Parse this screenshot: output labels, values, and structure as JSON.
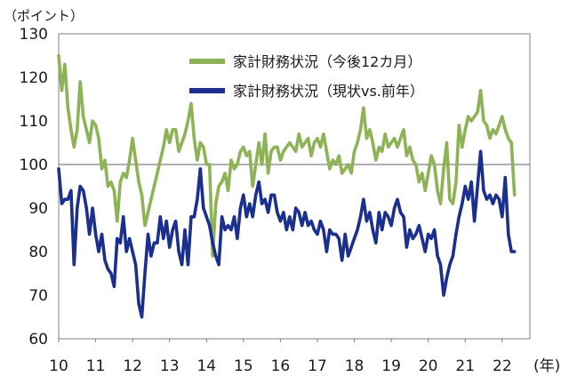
{
  "chart_data": {
    "type": "line",
    "unit_label": "（ポイント）",
    "x_unit_label": "(年)",
    "x": [
      2010.0,
      2010.0833,
      2010.1667,
      2010.25,
      2010.3333,
      2010.4167,
      2010.5,
      2010.5833,
      2010.6667,
      2010.75,
      2010.8333,
      2010.9167,
      2011.0,
      2011.0833,
      2011.1667,
      2011.25,
      2011.3333,
      2011.4167,
      2011.5,
      2011.5833,
      2011.6667,
      2011.75,
      2011.8333,
      2011.9167,
      2012.0,
      2012.0833,
      2012.1667,
      2012.25,
      2012.3333,
      2012.4167,
      2012.5,
      2012.5833,
      2012.6667,
      2012.75,
      2012.8333,
      2012.9167,
      2013.0,
      2013.0833,
      2013.1667,
      2013.25,
      2013.3333,
      2013.4167,
      2013.5,
      2013.5833,
      2013.6667,
      2013.75,
      2013.8333,
      2013.9167,
      2014.0,
      2014.0833,
      2014.1667,
      2014.25,
      2014.3333,
      2014.4167,
      2014.5,
      2014.5833,
      2014.6667,
      2014.75,
      2014.8333,
      2014.9167,
      2015.0,
      2015.0833,
      2015.1667,
      2015.25,
      2015.3333,
      2015.4167,
      2015.5,
      2015.5833,
      2015.6667,
      2015.75,
      2015.8333,
      2015.9167,
      2016.0,
      2016.0833,
      2016.1667,
      2016.25,
      2016.3333,
      2016.4167,
      2016.5,
      2016.5833,
      2016.6667,
      2016.75,
      2016.8333,
      2016.9167,
      2017.0,
      2017.0833,
      2017.1667,
      2017.25,
      2017.3333,
      2017.4167,
      2017.5,
      2017.5833,
      2017.6667,
      2017.75,
      2017.8333,
      2017.9167,
      2018.0,
      2018.0833,
      2018.1667,
      2018.25,
      2018.3333,
      2018.4167,
      2018.5,
      2018.5833,
      2018.6667,
      2018.75,
      2018.8333,
      2018.9167,
      2019.0,
      2019.0833,
      2019.1667,
      2019.25,
      2019.3333,
      2019.4167,
      2019.5,
      2019.5833,
      2019.6667,
      2019.75,
      2019.8333,
      2019.9167,
      2020.0,
      2020.0833,
      2020.1667,
      2020.25,
      2020.3333,
      2020.4167,
      2020.5,
      2020.5833,
      2020.6667,
      2020.75,
      2020.8333,
      2020.9167,
      2021.0,
      2021.0833,
      2021.1667,
      2021.25,
      2021.3333,
      2021.4167,
      2021.5,
      2021.5833,
      2021.6667,
      2021.75,
      2021.8333,
      2021.9167,
      2022.0,
      2022.0833,
      2022.1667,
      2022.25,
      2022.3333
    ],
    "series": [
      {
        "name": "家計財務状況（今後12カ月）",
        "color": "#8db356",
        "values": [
          125,
          117,
          123,
          113,
          108,
          104,
          108,
          119,
          111,
          108,
          105,
          110,
          109,
          106,
          99,
          101,
          95,
          96,
          94,
          87,
          96,
          98,
          97,
          101,
          106,
          101,
          96,
          93,
          86,
          89,
          92,
          95,
          98,
          101,
          104,
          108,
          105,
          108,
          108,
          103,
          105,
          107,
          110,
          114,
          106,
          101,
          105,
          104,
          100,
          100,
          79,
          91,
          95,
          96,
          98,
          94,
          101,
          99,
          100,
          103,
          104,
          102,
          103,
          95,
          100,
          105,
          100,
          107,
          98,
          103,
          104,
          104,
          101,
          103,
          104,
          105,
          104,
          103,
          107,
          104,
          105,
          106,
          102,
          105,
          106,
          104,
          107,
          103,
          99,
          101,
          100,
          102,
          98,
          99,
          100,
          98,
          103,
          105,
          108,
          113,
          106,
          108,
          105,
          101,
          104,
          103,
          107,
          104,
          105,
          106,
          104,
          106,
          108,
          102,
          104,
          101,
          100,
          96,
          98,
          94,
          98,
          102,
          100,
          94,
          91,
          99,
          105,
          92,
          91,
          96,
          109,
          104,
          108,
          111,
          110,
          111,
          112,
          117,
          110,
          109,
          106,
          108,
          107,
          109,
          111,
          108,
          106,
          105,
          93
        ]
      },
      {
        "name": "家計財務状況（現状vs.前年）",
        "color": "#1a2f8e",
        "values": [
          99,
          91,
          92,
          92,
          94,
          77,
          90,
          95,
          94,
          90,
          84,
          90,
          84,
          80,
          84,
          78,
          76,
          75,
          72,
          83,
          82,
          88,
          80,
          83,
          80,
          77,
          68,
          65,
          75,
          84,
          79,
          82,
          82,
          88,
          83,
          87,
          81,
          85,
          87,
          80,
          77,
          85,
          77,
          88,
          88,
          92,
          99,
          90,
          88,
          86,
          82,
          79,
          77,
          88,
          85,
          86,
          85,
          88,
          83,
          90,
          93,
          88,
          91,
          88,
          93,
          96,
          91,
          92,
          89,
          93,
          93,
          89,
          87,
          89,
          85,
          88,
          85,
          90,
          89,
          86,
          89,
          86,
          87,
          85,
          84,
          87,
          85,
          80,
          85,
          84,
          84,
          83,
          78,
          84,
          79,
          81,
          83,
          85,
          88,
          92,
          87,
          89,
          85,
          82,
          89,
          85,
          89,
          88,
          86,
          90,
          92,
          89,
          88,
          81,
          85,
          83,
          84,
          86,
          83,
          80,
          84,
          83,
          85,
          79,
          77,
          70,
          74,
          77,
          79,
          84,
          88,
          91,
          95,
          92,
          96,
          87,
          95,
          103,
          94,
          92,
          93,
          91,
          93,
          92,
          88,
          97,
          84,
          80,
          80
        ]
      }
    ],
    "x_ticks": [
      2010,
      2011,
      2012,
      2013,
      2014,
      2015,
      2016,
      2017,
      2018,
      2019,
      2020,
      2021,
      2022
    ],
    "x_tick_labels": [
      "10",
      "11",
      "12",
      "13",
      "14",
      "15",
      "16",
      "17",
      "18",
      "19",
      "20",
      "21",
      "22"
    ],
    "y_ticks": [
      60,
      70,
      80,
      90,
      100,
      110,
      120,
      130
    ],
    "y_tick_labels": [
      "60",
      "70",
      "80",
      "90",
      "100",
      "110",
      "120",
      "130"
    ],
    "xlim": [
      2010.0,
      2022.75
    ],
    "ylim": [
      60,
      130
    ],
    "reference_line": 100,
    "legend_position": "top-right",
    "grid": false
  }
}
